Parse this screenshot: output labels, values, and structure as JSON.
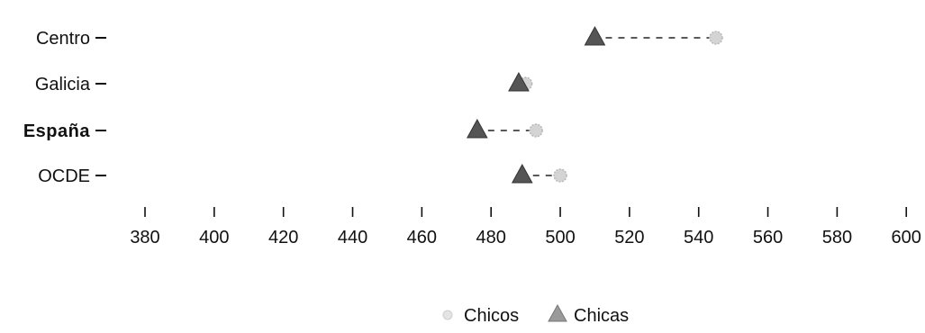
{
  "chart_data": {
    "type": "scatter",
    "title": "",
    "xlabel": "",
    "ylabel": "",
    "xlim": [
      370,
      600
    ],
    "x_ticks": [
      380,
      400,
      420,
      440,
      460,
      480,
      500,
      520,
      540,
      560,
      580,
      600
    ],
    "categories": [
      "Centro",
      "Galicia",
      "España",
      "OCDE"
    ],
    "bold_categories": [
      "España"
    ],
    "series": [
      {
        "name": "Chicos",
        "marker": "circle",
        "color": "#b8b8b8",
        "values": [
          545,
          490,
          493,
          500
        ]
      },
      {
        "name": "Chicas",
        "marker": "triangle",
        "color": "#555555",
        "values": [
          510,
          488,
          476,
          489
        ]
      }
    ],
    "connector": "dashed",
    "legend_position": "bottom-center",
    "grid": false
  }
}
